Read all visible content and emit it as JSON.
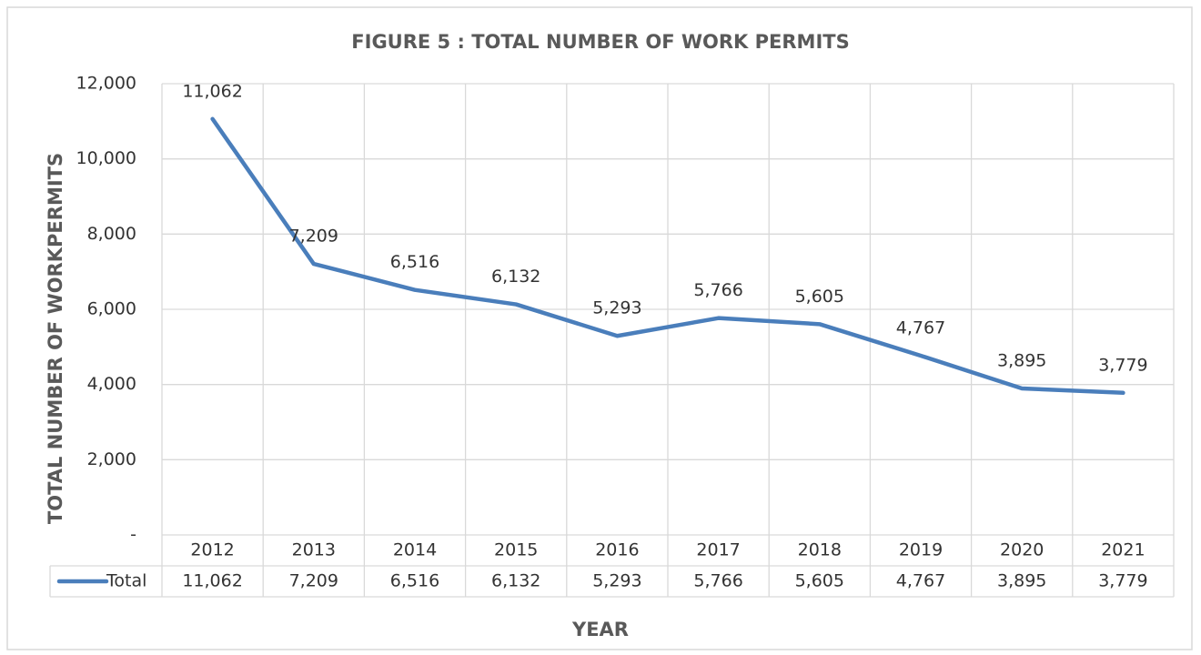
{
  "chart_data": {
    "type": "line",
    "title": "FIGURE 5 : TOTAL NUMBER OF WORK PERMITS",
    "x_label": "YEAR",
    "y_label": "TOTAL NUMBER OF WORKPERMITS",
    "categories": [
      "2012",
      "2013",
      "2014",
      "2015",
      "2016",
      "2017",
      "2018",
      "2019",
      "2020",
      "2021"
    ],
    "series": [
      {
        "name": "Total",
        "color": "#4a7ebb",
        "values": [
          11062,
          7209,
          6516,
          6132,
          5293,
          5766,
          5605,
          4767,
          3895,
          3779
        ],
        "value_labels": [
          "11,062",
          "7,209",
          "6,516",
          "6,132",
          "5,293",
          "5,766",
          "5,605",
          "4,767",
          "3,895",
          "3,779"
        ]
      }
    ],
    "ylim": [
      0,
      12000
    ],
    "yticks": [
      {
        "value": 0,
        "label": "-"
      },
      {
        "value": 2000,
        "label": "2,000"
      },
      {
        "value": 4000,
        "label": "4,000"
      },
      {
        "value": 6000,
        "label": "6,000"
      },
      {
        "value": 8000,
        "label": "8,000"
      },
      {
        "value": 10000,
        "label": "10,000"
      },
      {
        "value": 12000,
        "label": "12,000"
      }
    ],
    "grid": true,
    "data_table": true
  }
}
